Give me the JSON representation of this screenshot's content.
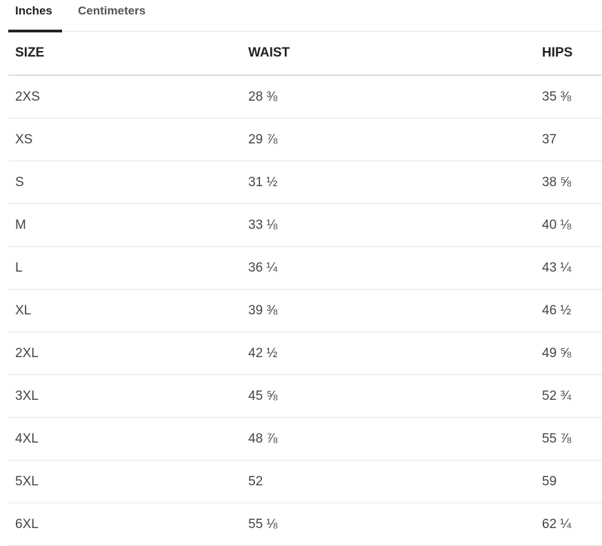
{
  "tabs": [
    "Inches",
    "Centimeters"
  ],
  "table": {
    "header": [
      "SIZE",
      "WAIST",
      "HIPS"
    ],
    "rows": [
      [
        "2XS",
        "28 ⅜",
        "35 ⅜"
      ],
      [
        "XS",
        "29 ⅞",
        "37"
      ],
      [
        "S",
        "31 ½",
        "38 ⅝"
      ],
      [
        "M",
        "33 ⅛",
        "40 ⅛"
      ],
      [
        "L",
        "36 ¼",
        "43 ¼"
      ],
      [
        "XL",
        "39 ⅜",
        "46 ½"
      ],
      [
        "2XL",
        "42 ½",
        "49 ⅝"
      ],
      [
        "3XL",
        "45 ⅝",
        "52 ¾"
      ],
      [
        "4XL",
        "48 ⅞",
        "55 ⅞"
      ],
      [
        "5XL",
        "52",
        "59"
      ],
      [
        "6XL",
        "55 ⅛",
        "62 ¼"
      ]
    ]
  }
}
